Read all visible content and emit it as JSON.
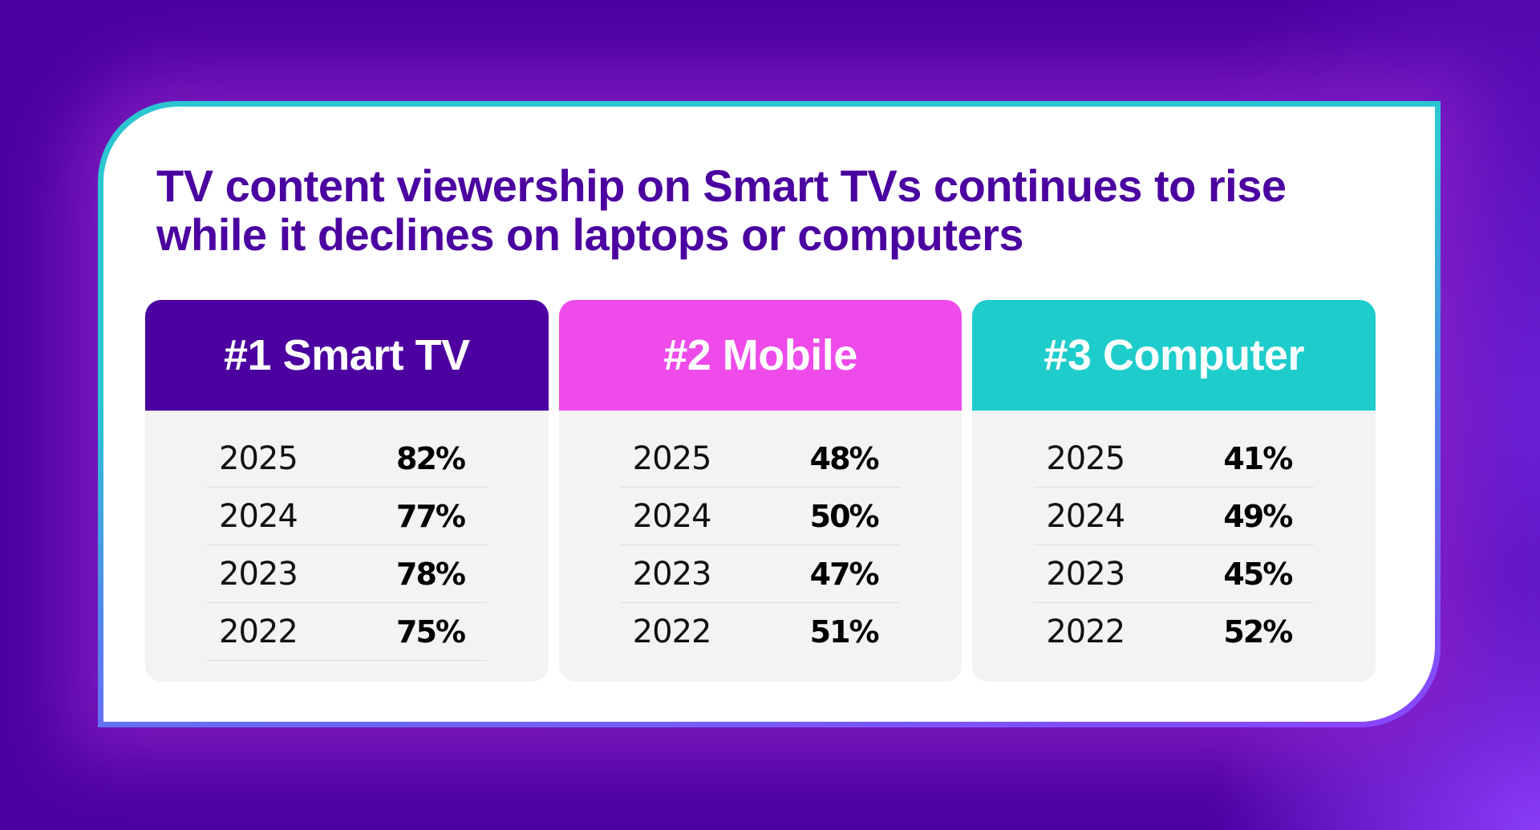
{
  "title": "TV content viewership on Smart TVs continues to rise\nwhile it declines on laptops or computers",
  "colors": {
    "background": "#4B00A0",
    "title": "#4B00A0",
    "card_border_top": "#2CC6D2",
    "card_border_bottom": "#8A44FF",
    "panel_body": "#F3F3F3"
  },
  "panels": [
    {
      "header": "#1 Smart TV",
      "color": "#4C00A0",
      "rows": [
        {
          "year": "2025",
          "value": "82%"
        },
        {
          "year": "2024",
          "value": "77%"
        },
        {
          "year": "2023",
          "value": "78%"
        },
        {
          "year": "2022",
          "value": "75%"
        }
      ]
    },
    {
      "header": "#2 Mobile",
      "color": "#EE4BEA",
      "rows": [
        {
          "year": "2025",
          "value": "48%"
        },
        {
          "year": "2024",
          "value": "50%"
        },
        {
          "year": "2023",
          "value": "47%"
        },
        {
          "year": "2022",
          "value": "51%"
        }
      ]
    },
    {
      "header": "#3 Computer",
      "color": "#1ECDCB",
      "rows": [
        {
          "year": "2025",
          "value": "41%"
        },
        {
          "year": "2024",
          "value": "49%"
        },
        {
          "year": "2023",
          "value": "45%"
        },
        {
          "year": "2022",
          "value": "52%"
        }
      ]
    }
  ]
}
